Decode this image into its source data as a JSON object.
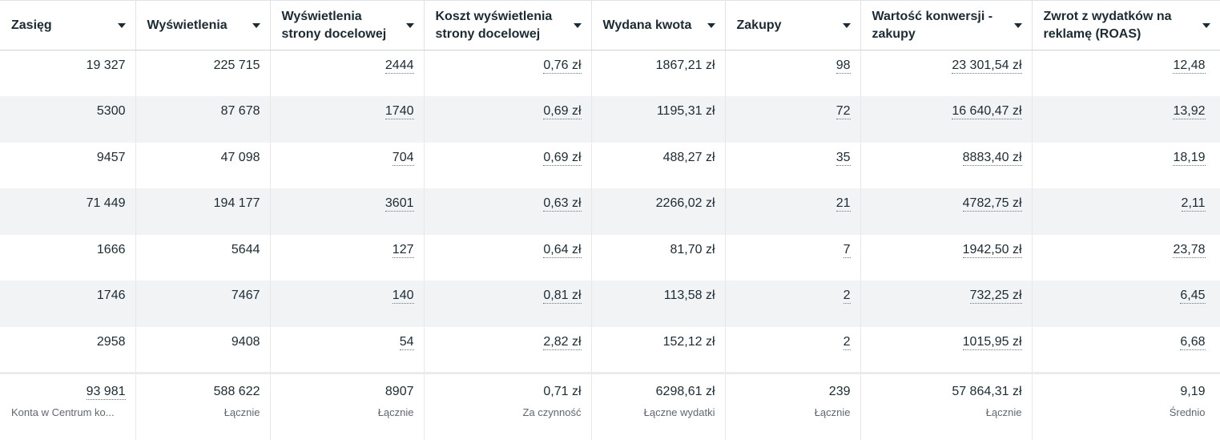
{
  "columns": [
    {
      "label": "Zasięg",
      "dotted": false
    },
    {
      "label": "Wyświetlenia",
      "dotted": false
    },
    {
      "label": "Wyświetlenia strony docelowej",
      "dotted": true
    },
    {
      "label": "Koszt wyświetlenia strony docelowej",
      "dotted": true
    },
    {
      "label": "Wydana kwota",
      "dotted": false
    },
    {
      "label": "Zakupy",
      "dotted": true
    },
    {
      "label": "Wartość konwersji - zakupy",
      "dotted": true
    },
    {
      "label": "Zwrot z wydatków na reklamę (ROAS)",
      "dotted": true
    }
  ],
  "rows": [
    [
      "19 327",
      "225 715",
      "2444",
      "0,76 zł",
      "1867,21 zł",
      "98",
      "23 301,54 zł",
      "12,48"
    ],
    [
      "5300",
      "87 678",
      "1740",
      "0,69 zł",
      "1195,31 zł",
      "72",
      "16 640,47 zł",
      "13,92"
    ],
    [
      "9457",
      "47 098",
      "704",
      "0,69 zł",
      "488,27 zł",
      "35",
      "8883,40 zł",
      "18,19"
    ],
    [
      "71 449",
      "194 177",
      "3601",
      "0,63 zł",
      "2266,02 zł",
      "21",
      "4782,75 zł",
      "2,11"
    ],
    [
      "1666",
      "5644",
      "127",
      "0,64 zł",
      "81,70 zł",
      "7",
      "1942,50 zł",
      "23,78"
    ],
    [
      "1746",
      "7467",
      "140",
      "0,81 zł",
      "113,58 zł",
      "2",
      "732,25 zł",
      "6,45"
    ],
    [
      "2958",
      "9408",
      "54",
      "2,82 zł",
      "152,12 zł",
      "2",
      "1015,95 zł",
      "6,68"
    ]
  ],
  "summary": [
    {
      "value": "93 981",
      "label": "Konta w Centrum ko...",
      "dotted": true
    },
    {
      "value": "588 622",
      "label": "Łącznie",
      "dotted": false
    },
    {
      "value": "8907",
      "label": "Łącznie",
      "dotted": false
    },
    {
      "value": "0,71 zł",
      "label": "Za czynność",
      "dotted": false
    },
    {
      "value": "6298,61 zł",
      "label": "Łączne wydatki",
      "dotted": false
    },
    {
      "value": "239",
      "label": "Łącznie",
      "dotted": false
    },
    {
      "value": "57 864,31 zł",
      "label": "Łącznie",
      "dotted": false
    },
    {
      "value": "9,19",
      "label": "Średnio",
      "dotted": false
    }
  ]
}
